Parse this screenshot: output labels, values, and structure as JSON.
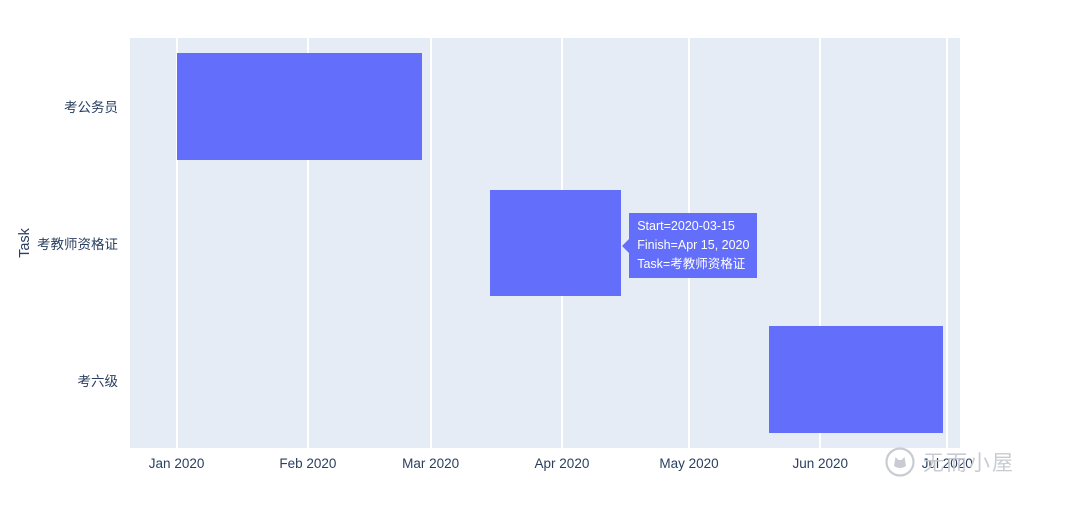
{
  "figure": {
    "background": "#ffffff",
    "plot_background": "#e5ecf6"
  },
  "chart_data": {
    "type": "bar",
    "subtype": "gantt-timeline-horizontal",
    "title": "",
    "xlabel": "",
    "ylabel": "Task",
    "grid": true,
    "legend": false,
    "bar_color": "#636efa",
    "x_domain": [
      "2019-12-21",
      "2020-07-04"
    ],
    "x_tick_labels": [
      "Jan 2020",
      "Feb 2020",
      "Mar 2020",
      "Apr 2020",
      "May 2020",
      "Jun 2020",
      "Jul 2020"
    ],
    "x_tick_dates": [
      "2020-01-01",
      "2020-02-01",
      "2020-03-01",
      "2020-04-01",
      "2020-05-01",
      "2020-06-01",
      "2020-07-01"
    ],
    "categories": [
      "考公务员",
      "考教师资格证",
      "考六级"
    ],
    "tasks": [
      {
        "label": "考公务员",
        "start": "2020-01-01",
        "finish": "2020-02-28"
      },
      {
        "label": "考教师资格证",
        "start": "2020-03-15",
        "finish": "2020-04-15"
      },
      {
        "label": "考六级",
        "start": "2020-05-20",
        "finish": "2020-06-30"
      }
    ]
  },
  "tooltip": {
    "lines": [
      "Start=2020-03-15",
      "Finish=Apr 15, 2020",
      "Task=考教师资格证"
    ],
    "background": "#636efa",
    "text_color": "#ffffff"
  },
  "watermark": {
    "text": "无而小屋",
    "icon": "cat-logo-icon",
    "color": "#c6cad0"
  }
}
